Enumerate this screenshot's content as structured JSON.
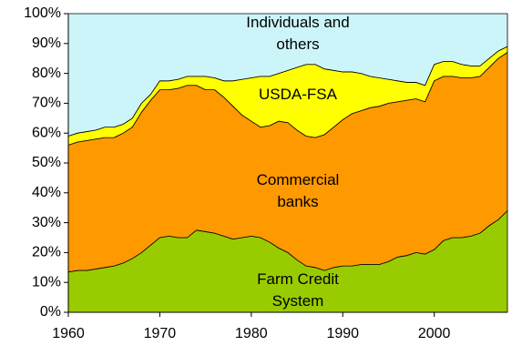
{
  "chart_data": {
    "type": "stacked_area",
    "x": [
      1960,
      1961,
      1962,
      1963,
      1964,
      1965,
      1966,
      1967,
      1968,
      1969,
      1970,
      1971,
      1972,
      1973,
      1974,
      1975,
      1976,
      1977,
      1978,
      1979,
      1980,
      1981,
      1982,
      1983,
      1984,
      1985,
      1986,
      1987,
      1988,
      1989,
      1990,
      1991,
      1992,
      1993,
      1994,
      1995,
      1996,
      1997,
      1998,
      1999,
      2000,
      2001,
      2002,
      2003,
      2004,
      2005,
      2006,
      2007,
      2008
    ],
    "series": [
      {
        "name": "Farm Credit System",
        "color": "#99cc00",
        "values": [
          13.5,
          14,
          14,
          14.5,
          15,
          15.5,
          16.5,
          18,
          20,
          22.5,
          25,
          25.5,
          25,
          25,
          27.5,
          27,
          26.5,
          25.5,
          24.5,
          25,
          25.5,
          25,
          23.5,
          21.5,
          20,
          17.5,
          15.5,
          15,
          14,
          15,
          15.5,
          15.5,
          16,
          16,
          16,
          17,
          18.5,
          19,
          20,
          19.5,
          21,
          24,
          25,
          25,
          25.5,
          26.5,
          29,
          31,
          34
        ]
      },
      {
        "name": "Commercial banks",
        "color": "#ff9900",
        "values": [
          42.5,
          43,
          43.5,
          43.5,
          43.5,
          43,
          43.5,
          44,
          47,
          48.5,
          49.5,
          49,
          50,
          51,
          48.5,
          47.5,
          48,
          46.5,
          44.5,
          41,
          38.5,
          37,
          39,
          42.5,
          43.5,
          43.5,
          43.5,
          43.5,
          45.5,
          47,
          49,
          51,
          51.5,
          52.5,
          53,
          53,
          52,
          52,
          51.5,
          51,
          56.5,
          55,
          54,
          53.5,
          53,
          52.5,
          53,
          54,
          53
        ]
      },
      {
        "name": "USDA-FSA",
        "color": "#ffff00",
        "values": [
          3,
          3,
          3,
          3,
          3.5,
          3.5,
          3,
          3,
          3,
          2,
          3,
          3,
          3,
          3,
          3,
          4.5,
          4,
          5.5,
          8.5,
          12,
          14.5,
          17,
          16.5,
          16,
          17.5,
          21,
          24,
          24.5,
          22,
          19,
          16,
          14,
          12.5,
          10.5,
          9.5,
          8,
          7,
          6,
          5.5,
          5.5,
          5.5,
          5,
          5,
          4.5,
          4,
          3.5,
          3,
          2.5,
          2
        ]
      },
      {
        "name": "Individuals and others",
        "color": "#ccf5fa",
        "values": [
          41,
          40,
          39.5,
          39,
          38,
          38,
          37,
          35,
          30,
          27,
          22.5,
          22.5,
          22,
          21,
          21,
          21,
          21.5,
          22.5,
          22.5,
          22,
          21.5,
          21,
          21,
          20,
          19,
          18,
          17,
          17,
          18.5,
          19,
          19.5,
          19.5,
          20,
          21,
          21.5,
          22,
          22.5,
          23,
          23,
          24,
          17,
          16,
          16,
          17,
          17.5,
          17.5,
          15,
          12.5,
          11
        ]
      }
    ],
    "xlim": [
      1960,
      2008
    ],
    "xticks": [
      1960,
      1970,
      1980,
      1990,
      2000
    ],
    "ylim": [
      0,
      100
    ],
    "yticks": [
      {
        "value": 0,
        "label": "0%"
      },
      {
        "value": 10,
        "label": "10%"
      },
      {
        "value": 20,
        "label": "20%"
      },
      {
        "value": 30,
        "label": "30%"
      },
      {
        "value": 40,
        "label": "40%"
      },
      {
        "value": 50,
        "label": "50%"
      },
      {
        "value": 60,
        "label": "60%"
      },
      {
        "value": 70,
        "label": "70%"
      },
      {
        "value": 80,
        "label": "80%"
      },
      {
        "value": 90,
        "label": "90%"
      },
      {
        "value": 100,
        "label": "100%"
      }
    ]
  }
}
